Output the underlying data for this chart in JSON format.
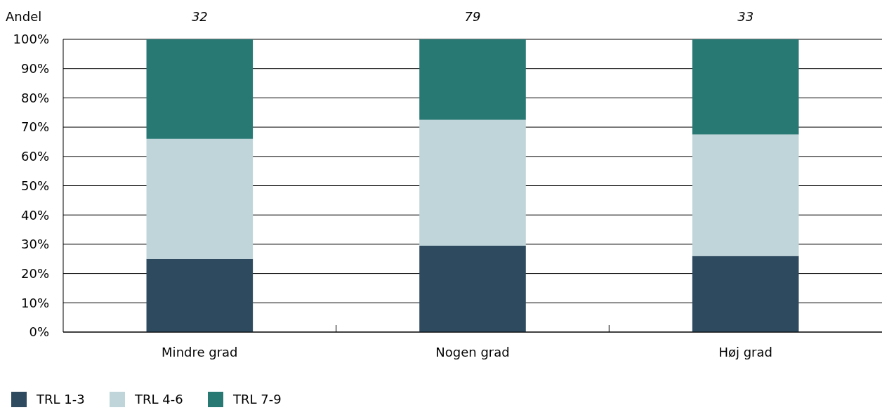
{
  "chart_data": {
    "type": "bar",
    "stacked": true,
    "ylabel": "Andel",
    "categories": [
      "Mindre grad",
      "Nogen grad",
      "Høj grad"
    ],
    "series": [
      {
        "name": "TRL 1-3",
        "color": "#2e4a5f",
        "values": [
          25,
          29.5,
          26
        ]
      },
      {
        "name": "TRL 4-6",
        "color": "#c0d5da",
        "values": [
          41,
          43,
          41.5
        ]
      },
      {
        "name": "TRL 7-9",
        "color": "#287874",
        "values": [
          34,
          27.5,
          32.5
        ]
      }
    ],
    "ylim": [
      0,
      100
    ],
    "yticks": [
      {
        "value": 0,
        "label": "0%"
      },
      {
        "value": 10,
        "label": "10%"
      },
      {
        "value": 20,
        "label": "20%"
      },
      {
        "value": 30,
        "label": "30%"
      },
      {
        "value": 40,
        "label": "40%"
      },
      {
        "value": 50,
        "label": "50%"
      },
      {
        "value": 60,
        "label": "60%"
      },
      {
        "value": 70,
        "label": "70%"
      },
      {
        "value": 80,
        "label": "80%"
      },
      {
        "value": 90,
        "label": "90%"
      },
      {
        "value": 100,
        "label": "100%"
      }
    ],
    "grid": "y",
    "legend": "bottom left",
    "annotations": [
      "32",
      "79",
      "33"
    ]
  }
}
